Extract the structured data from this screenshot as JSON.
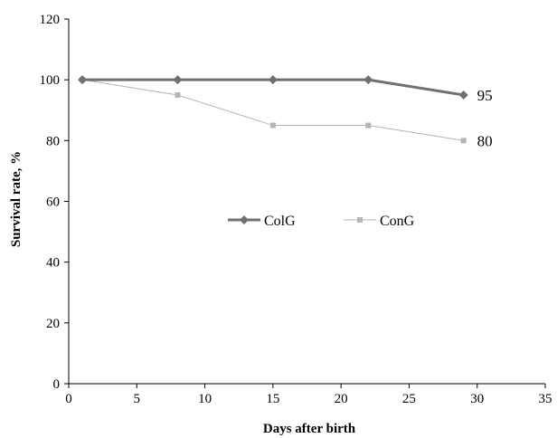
{
  "chart_data": {
    "type": "line",
    "title": "",
    "xlabel": "Days after birth",
    "ylabel": "Survival rate, %",
    "xlim": [
      0,
      35
    ],
    "ylim": [
      0,
      120
    ],
    "x_ticks": [
      0,
      5,
      10,
      15,
      20,
      25,
      30,
      35
    ],
    "y_ticks": [
      0,
      20,
      40,
      60,
      80,
      100,
      120
    ],
    "grid": false,
    "legend": "center",
    "series": [
      {
        "name": "ColG",
        "x": [
          1,
          8,
          15,
          22,
          29
        ],
        "y": [
          100,
          100,
          100,
          100,
          95
        ],
        "color": "#707070",
        "marker": "diamond",
        "end_label": "95"
      },
      {
        "name": "ConG",
        "x": [
          1,
          8,
          15,
          22,
          29
        ],
        "y": [
          100,
          95,
          85,
          85,
          80
        ],
        "color": "#b4b4b4",
        "marker": "square",
        "end_label": "80"
      }
    ]
  }
}
